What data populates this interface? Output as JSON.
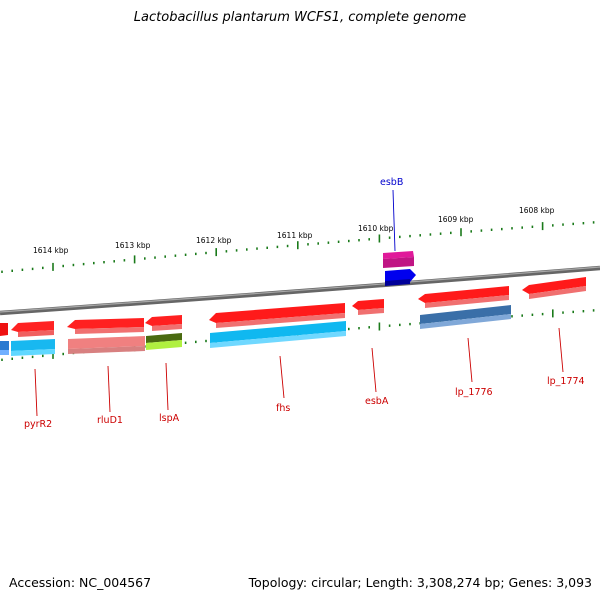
{
  "title": "Lactobacillus plantarum WCFS1, complete genome",
  "footer": {
    "accession": "Accession: NC_004567",
    "topology": "Topology: circular; Length: 3,308,274 bp; Genes: 3,093"
  },
  "colors": {
    "backbone": "#808080",
    "ticks": "#1a7a1a",
    "label_forward": "#0000cc",
    "label_reverse": "#cc0000"
  },
  "scale_labels": [
    "1614 kbp",
    "1613 kbp",
    "1612 kbp",
    "1611 kbp",
    "1610 kbp",
    "1609 kbp",
    "1608 kbp"
  ],
  "genes": [
    {
      "name": "esbB",
      "strand": "forward",
      "color": "#e0199a"
    },
    {
      "name": "pyrR2",
      "strand": "reverse",
      "color": "#ee1111"
    },
    {
      "name": "rluD1",
      "strand": "reverse",
      "color": "#ee1111"
    },
    {
      "name": "lspA",
      "strand": "reverse",
      "color": "#ee1111"
    },
    {
      "name": "fhs",
      "strand": "reverse",
      "color": "#ee1111"
    },
    {
      "name": "esbA",
      "strand": "reverse",
      "color": "#ee1111"
    },
    {
      "name": "lp_1776",
      "strand": "reverse",
      "color": "#ee1111"
    },
    {
      "name": "lp_1774",
      "strand": "reverse",
      "color": "#ee1111"
    }
  ]
}
